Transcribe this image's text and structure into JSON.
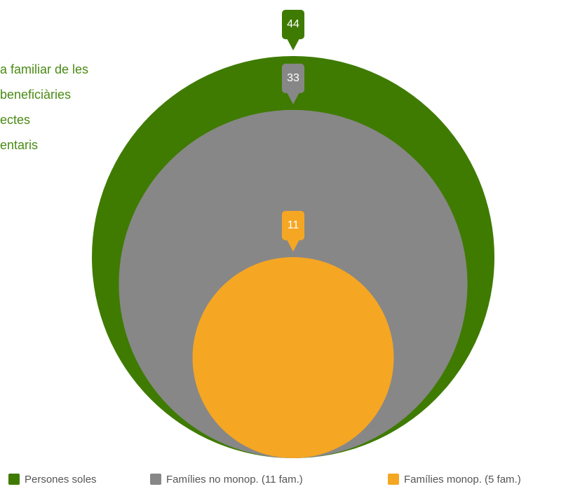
{
  "chart_data": {
    "type": "nested-circle",
    "title_lines": [
      "a familiar de les",
      "beneficiàries",
      "ectes",
      "entaris"
    ],
    "title_color": "#4a8a14",
    "series": [
      {
        "name": "Persones soles",
        "color": "#3f7b00",
        "value": 44
      },
      {
        "name": "Famílies no monop. (11 fam.)",
        "color": "#878787",
        "value": 33
      },
      {
        "name": "Famílies monop. (5 fam.)",
        "color": "#f5a623",
        "value": 11
      }
    ]
  }
}
